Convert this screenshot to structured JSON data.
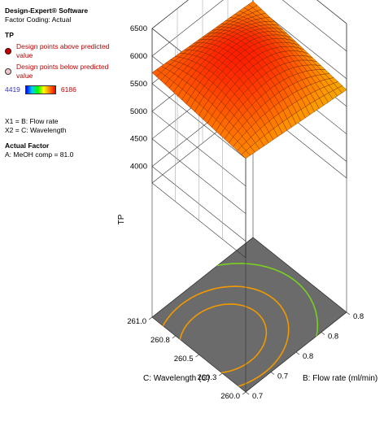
{
  "legend": {
    "software": "Design-Expert® Software",
    "coding": "Factor Coding: Actual",
    "response": "TP",
    "above": "Design points above predicted value",
    "below": "Design points below predicted value",
    "scale_min": "4419",
    "scale_max": "6186",
    "x1": "X1 = B: Flow rate",
    "x2": "X2 = C: Wavelength",
    "actual_factor_title": "Actual Factor",
    "actual_factor_value": "A: MeOH comp = 81.0"
  },
  "colors": {
    "surface_high": "#ff1a00",
    "surface_mid": "#ff9900",
    "surface_low": "#bff000",
    "floor": "#6b6b6b",
    "contour_orange": "#f09a00",
    "contour_green": "#7ad020"
  },
  "chart_data": {
    "type": "surface3d",
    "zlabel": "TP",
    "xlabel": "B: Flow rate (ml/min)",
    "ylabel": "C: Wavelength (C)",
    "z_ticks": [
      "4000",
      "4500",
      "5000",
      "5500",
      "6000",
      "6500"
    ],
    "z_range": [
      3700,
      6500
    ],
    "x_ticks": [
      "0.7",
      "0.7",
      "0.8",
      "0.8",
      "0.8"
    ],
    "y_ticks": [
      "260.0",
      "260.3",
      "260.5",
      "260.8",
      "261.0"
    ],
    "surface_corner_values": {
      "back_left": 5700,
      "back_right": 5550,
      "front_left": 5500,
      "front_right": 5300,
      "peak": 6050
    }
  }
}
